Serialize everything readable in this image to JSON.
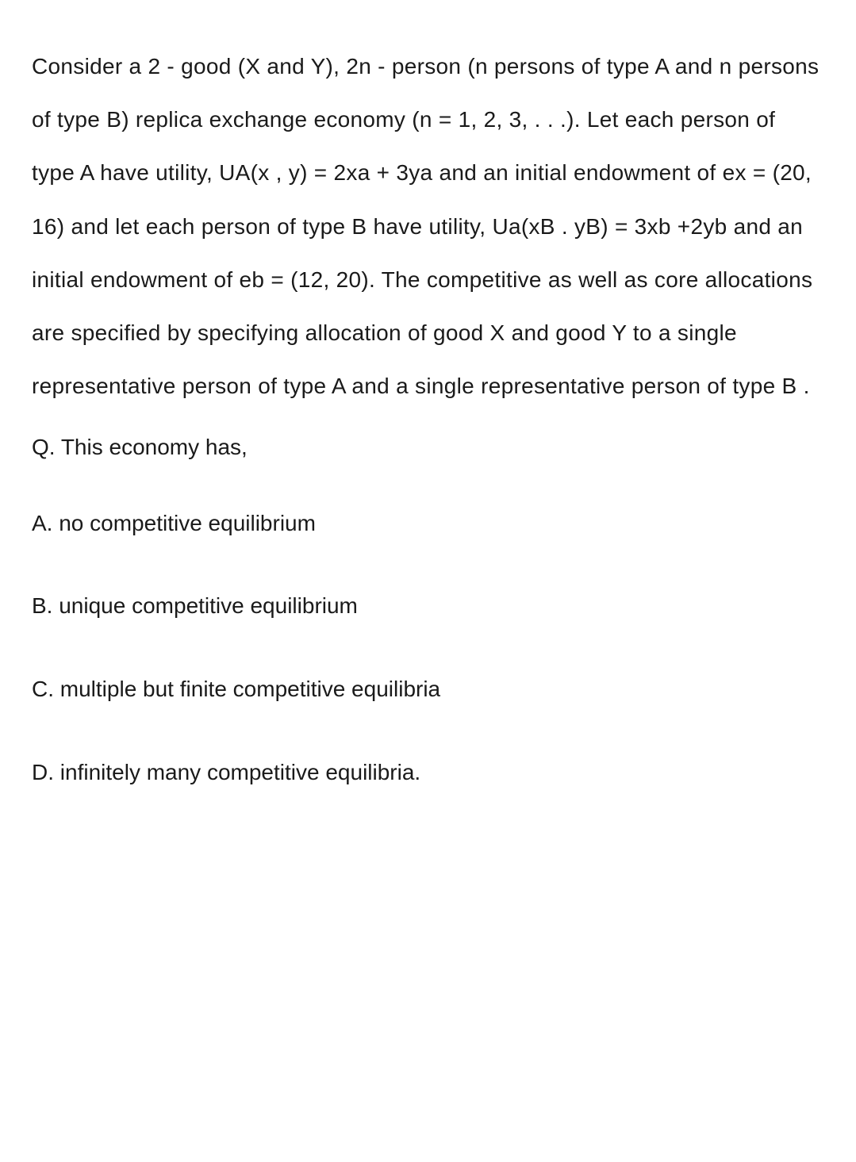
{
  "problem": {
    "text": "Consider a 2 - good (X and Y), 2n - person (n persons of type A and n persons of type B) replica exchange economy (n = 1, 2, 3, . . .). Let each person of type A have utility, UA(x , y) = 2xa + 3ya and an initial endowment of ex = (20, 16) and let each person of type B have utility, Ua(xB . yB) = 3xb +2yb and an initial endowment of eb = (12, 20). The competitive as well as core allocations are specified by specifying allocation of good X and good Y to a single representative person of type A and a single representative person of type B .",
    "question_label": "Q. This economy has,"
  },
  "options": {
    "A": "A. no competitive equilibrium",
    "B": "B. unique competitive equilibrium",
    "C": "C. multiple but finite competitive equilibria",
    "D": "D. infinitely many competitive equilibria."
  },
  "styling": {
    "background_color": "#ffffff",
    "text_color": "#1a1a1a",
    "font_size": 28,
    "line_height": 2.4,
    "font_family": "Arial, Helvetica, sans-serif"
  }
}
